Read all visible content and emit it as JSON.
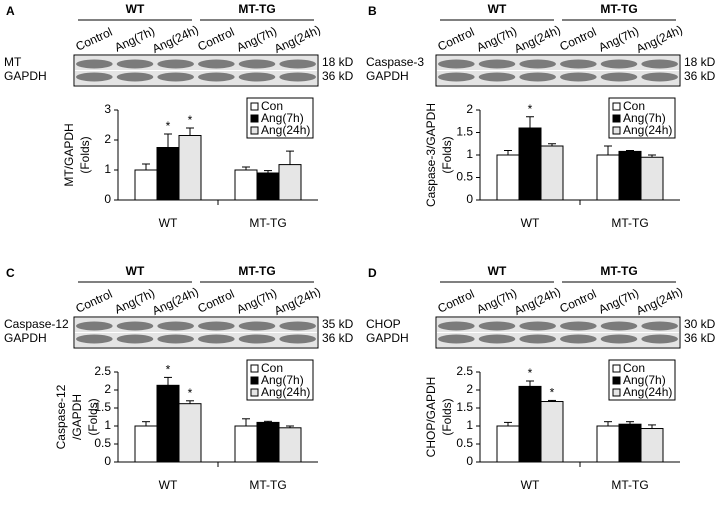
{
  "chart_data": [
    {
      "type": "bar",
      "panel": "A",
      "blot": {
        "groups": [
          "WT",
          "MT-TG"
        ],
        "lanes": [
          "Control",
          "Ang(7h)",
          "Ang(24h)",
          "Control",
          "Ang(7h)",
          "Ang(24h)"
        ],
        "rows": [
          "MT",
          "GAPDH"
        ],
        "sizes": [
          "18 kD",
          "36 kD"
        ]
      },
      "ylabel": [
        "MT/GAPDH",
        "(Folds)"
      ],
      "categories": [
        "WT",
        "MT-TG"
      ],
      "ylim": [
        0,
        3
      ],
      "yticks": [
        0,
        1,
        2,
        3
      ],
      "series": [
        {
          "name": "Con",
          "color": "#ffffff",
          "values": [
            1.0,
            1.0
          ],
          "errors": [
            0.2,
            0.1
          ],
          "significance": [
            null,
            null
          ]
        },
        {
          "name": "Ang(7h)",
          "color": "#000000",
          "values": [
            1.75,
            0.9
          ],
          "errors": [
            0.45,
            0.08
          ],
          "significance": [
            "*",
            null
          ]
        },
        {
          "name": "Ang(24h)",
          "color": "#e6e6e6",
          "values": [
            2.15,
            1.18
          ],
          "errors": [
            0.25,
            0.45
          ],
          "significance": [
            "*",
            null
          ]
        }
      ]
    },
    {
      "type": "bar",
      "panel": "B",
      "blot": {
        "groups": [
          "WT",
          "MT-TG"
        ],
        "lanes": [
          "Control",
          "Ang(7h)",
          "Ang(24h)",
          "Control",
          "Ang(7h)",
          "Ang(24h)"
        ],
        "rows": [
          "Caspase-3",
          "GAPDH"
        ],
        "sizes": [
          "18 kD",
          "36 kD"
        ]
      },
      "ylabel": [
        "Caspase-3/GAPDH",
        "(Folds)"
      ],
      "categories": [
        "WT",
        "MT-TG"
      ],
      "ylim": [
        0,
        2
      ],
      "yticks": [
        0,
        0.5,
        1,
        1.5,
        2
      ],
      "series": [
        {
          "name": "Con",
          "color": "#ffffff",
          "values": [
            1.0,
            1.0
          ],
          "errors": [
            0.1,
            0.2
          ],
          "significance": [
            null,
            null
          ]
        },
        {
          "name": "Ang(7h)",
          "color": "#000000",
          "values": [
            1.6,
            1.08
          ],
          "errors": [
            0.25,
            0.02
          ],
          "significance": [
            "*",
            null
          ]
        },
        {
          "name": "Ang(24h)",
          "color": "#e6e6e6",
          "values": [
            1.2,
            0.95
          ],
          "errors": [
            0.05,
            0.05
          ],
          "significance": [
            null,
            null
          ]
        }
      ]
    },
    {
      "type": "bar",
      "panel": "C",
      "blot": {
        "groups": [
          "WT",
          "MT-TG"
        ],
        "lanes": [
          "Control",
          "Ang(7h)",
          "Ang(24h)",
          "Control",
          "Ang(7h)",
          "Ang(24h)"
        ],
        "rows": [
          "Caspase-12",
          "GAPDH"
        ],
        "sizes": [
          "35 kD",
          "36 kD"
        ]
      },
      "ylabel": [
        "Caspase-12",
        "/GAPDH",
        "(Folds)"
      ],
      "categories": [
        "WT",
        "MT-TG"
      ],
      "ylim": [
        0,
        2.5
      ],
      "yticks": [
        0,
        0.5,
        1,
        1.5,
        2,
        2.5
      ],
      "series": [
        {
          "name": "Con",
          "color": "#ffffff",
          "values": [
            1.0,
            1.0
          ],
          "errors": [
            0.12,
            0.2
          ],
          "significance": [
            null,
            null
          ]
        },
        {
          "name": "Ang(7h)",
          "color": "#000000",
          "values": [
            2.13,
            1.1
          ],
          "errors": [
            0.22,
            0.03
          ],
          "significance": [
            "*",
            null
          ]
        },
        {
          "name": "Ang(24h)",
          "color": "#e6e6e6",
          "values": [
            1.62,
            0.95
          ],
          "errors": [
            0.08,
            0.05
          ],
          "significance": [
            "*",
            null
          ]
        }
      ]
    },
    {
      "type": "bar",
      "panel": "D",
      "blot": {
        "groups": [
          "WT",
          "MT-TG"
        ],
        "lanes": [
          "Control",
          "Ang(7h)",
          "Ang(24h)",
          "Control",
          "Ang(7h)",
          "Ang(24h)"
        ],
        "rows": [
          "CHOP",
          "GAPDH"
        ],
        "sizes": [
          "30 kD",
          "36 kD"
        ]
      },
      "ylabel": [
        "CHOP/GAPDH",
        "(Folds)"
      ],
      "categories": [
        "WT",
        "MT-TG"
      ],
      "ylim": [
        0,
        2.5
      ],
      "yticks": [
        0,
        0.5,
        1,
        1.5,
        2,
        2.5
      ],
      "series": [
        {
          "name": "Con",
          "color": "#ffffff",
          "values": [
            1.0,
            1.0
          ],
          "errors": [
            0.1,
            0.12
          ],
          "significance": [
            null,
            null
          ]
        },
        {
          "name": "Ang(7h)",
          "color": "#000000",
          "values": [
            2.1,
            1.05
          ],
          "errors": [
            0.15,
            0.07
          ],
          "significance": [
            "*",
            null
          ]
        },
        {
          "name": "Ang(24h)",
          "color": "#e6e6e6",
          "values": [
            1.68,
            0.93
          ],
          "errors": [
            0.03,
            0.1
          ],
          "significance": [
            "*",
            null
          ]
        }
      ]
    }
  ]
}
